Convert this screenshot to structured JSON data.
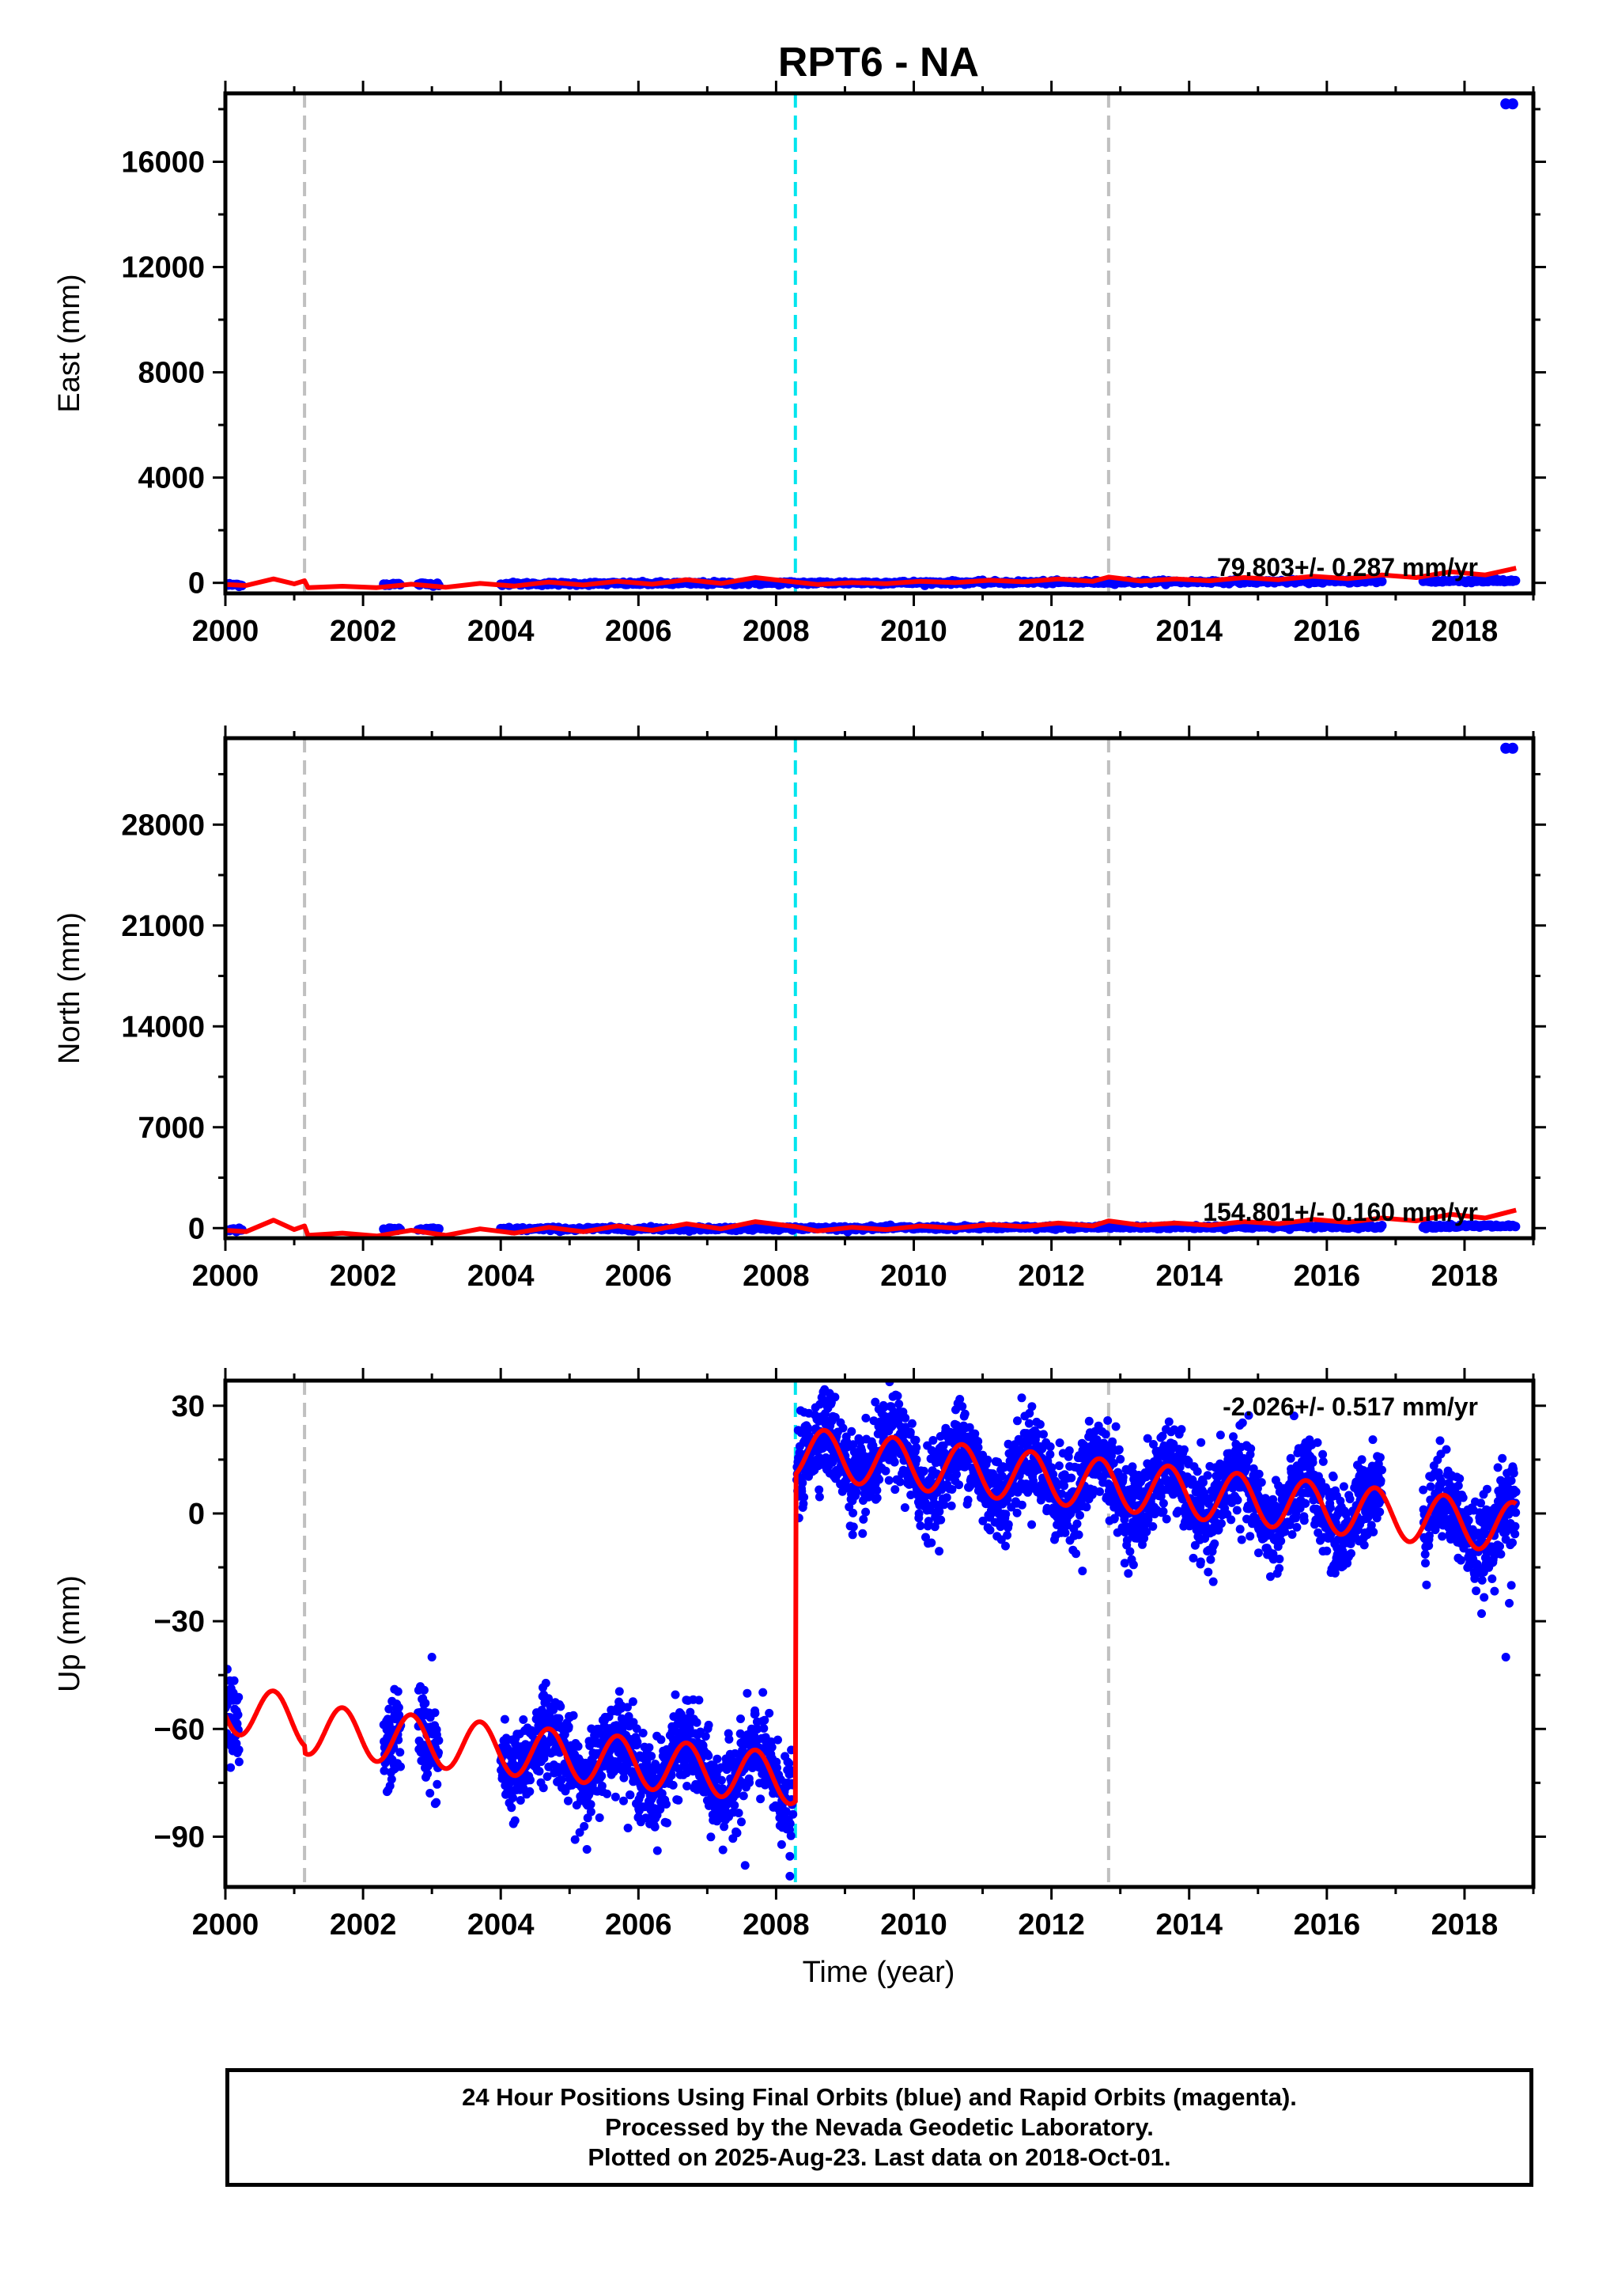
{
  "figure": {
    "title": "RPT6 - NA",
    "x_label": "Time (year)"
  },
  "colors": {
    "final_orbit_points": "#0000ff",
    "model_fit": "#ff0000",
    "antenna_change_lines": "#c0c0c0",
    "equipment_change_line": "#00e5ee"
  },
  "chart_data": [
    {
      "type": "scatter",
      "panel": "east",
      "ylabel": "East (mm)",
      "xlim": [
        2000.0,
        2019.0
      ],
      "ylim": [
        -400,
        18600
      ],
      "xticks": [
        2000,
        2002,
        2004,
        2006,
        2008,
        2010,
        2012,
        2014,
        2016,
        2018
      ],
      "yticks": [
        0,
        4000,
        8000,
        12000,
        16000
      ],
      "vlines_gray": [
        2001.15,
        2012.83
      ],
      "vline_cyan": 2008.28,
      "rate_label": "79.803+/- 0.287 mm/yr",
      "data_spans": [
        [
          2000.0,
          2000.25
        ],
        [
          2002.3,
          2002.55
        ],
        [
          2002.8,
          2003.1
        ],
        [
          2004.0,
          2016.8
        ],
        [
          2017.4,
          2018.75
        ]
      ],
      "outliers": [
        {
          "x": 2018.6,
          "y": 18200
        },
        {
          "x": 2018.7,
          "y": 18200
        }
      ],
      "fit_curve": [
        {
          "x": 2000.0,
          "y": -60
        },
        {
          "x": 2000.3,
          "y": -100
        },
        {
          "x": 2000.7,
          "y": 150
        },
        {
          "x": 2001.0,
          "y": -40
        },
        {
          "x": 2001.15,
          "y": 80
        },
        {
          "x": 2001.2,
          "y": -180
        },
        {
          "x": 2001.7,
          "y": -130
        },
        {
          "x": 2002.2,
          "y": -180
        },
        {
          "x": 2002.7,
          "y": -50
        },
        {
          "x": 2003.2,
          "y": -170
        },
        {
          "x": 2003.7,
          "y": -20
        },
        {
          "x": 2004.2,
          "y": -120
        },
        {
          "x": 2004.7,
          "y": 30
        },
        {
          "x": 2005.2,
          "y": -80
        },
        {
          "x": 2005.7,
          "y": 60
        },
        {
          "x": 2006.2,
          "y": -50
        },
        {
          "x": 2006.7,
          "y": 120
        },
        {
          "x": 2007.2,
          "y": -20
        },
        {
          "x": 2007.7,
          "y": 200
        },
        {
          "x": 2008.28,
          "y": 30
        },
        {
          "x": 2008.6,
          "y": -60
        },
        {
          "x": 2009.1,
          "y": 10
        },
        {
          "x": 2009.6,
          "y": -30
        },
        {
          "x": 2010.1,
          "y": 60
        },
        {
          "x": 2010.6,
          "y": 10
        },
        {
          "x": 2011.1,
          "y": 100
        },
        {
          "x": 2011.6,
          "y": 40
        },
        {
          "x": 2012.1,
          "y": 150
        },
        {
          "x": 2012.6,
          "y": 60
        },
        {
          "x": 2012.83,
          "y": 220
        },
        {
          "x": 2013.3,
          "y": 70
        },
        {
          "x": 2013.8,
          "y": 150
        },
        {
          "x": 2014.3,
          "y": 80
        },
        {
          "x": 2014.8,
          "y": 200
        },
        {
          "x": 2015.3,
          "y": 120
        },
        {
          "x": 2015.8,
          "y": 250
        },
        {
          "x": 2016.3,
          "y": 160
        },
        {
          "x": 2016.8,
          "y": 300
        },
        {
          "x": 2017.3,
          "y": 200
        },
        {
          "x": 2017.8,
          "y": 420
        },
        {
          "x": 2018.3,
          "y": 300
        },
        {
          "x": 2018.75,
          "y": 560
        }
      ]
    },
    {
      "type": "scatter",
      "panel": "north",
      "ylabel": "North (mm)",
      "xlim": [
        2000.0,
        2019.0
      ],
      "ylim": [
        -700,
        34000
      ],
      "xticks": [
        2000,
        2002,
        2004,
        2006,
        2008,
        2010,
        2012,
        2014,
        2016,
        2018
      ],
      "yticks": [
        0,
        7000,
        14000,
        21000,
        28000
      ],
      "vlines_gray": [
        2001.15,
        2012.83
      ],
      "vline_cyan": 2008.28,
      "rate_label": "154.801+/- 0.160 mm/yr",
      "data_spans": [
        [
          2000.0,
          2000.25
        ],
        [
          2002.3,
          2002.55
        ],
        [
          2002.8,
          2003.1
        ],
        [
          2004.0,
          2016.8
        ],
        [
          2017.4,
          2018.75
        ]
      ],
      "outliers": [
        {
          "x": 2018.6,
          "y": 33300
        },
        {
          "x": 2018.7,
          "y": 33300
        }
      ],
      "fit_curve": [
        {
          "x": 2000.0,
          "y": -150
        },
        {
          "x": 2000.3,
          "y": -250
        },
        {
          "x": 2000.7,
          "y": 550
        },
        {
          "x": 2001.0,
          "y": -100
        },
        {
          "x": 2001.15,
          "y": 150
        },
        {
          "x": 2001.2,
          "y": -500
        },
        {
          "x": 2001.7,
          "y": -350
        },
        {
          "x": 2002.2,
          "y": -550
        },
        {
          "x": 2002.7,
          "y": -150
        },
        {
          "x": 2003.2,
          "y": -500
        },
        {
          "x": 2003.7,
          "y": -50
        },
        {
          "x": 2004.2,
          "y": -350
        },
        {
          "x": 2004.7,
          "y": 50
        },
        {
          "x": 2005.2,
          "y": -250
        },
        {
          "x": 2005.7,
          "y": 150
        },
        {
          "x": 2006.2,
          "y": -150
        },
        {
          "x": 2006.7,
          "y": 300
        },
        {
          "x": 2007.2,
          "y": -50
        },
        {
          "x": 2007.7,
          "y": 450
        },
        {
          "x": 2008.28,
          "y": 100
        },
        {
          "x": 2008.6,
          "y": -200
        },
        {
          "x": 2009.1,
          "y": 50
        },
        {
          "x": 2009.6,
          "y": -100
        },
        {
          "x": 2010.1,
          "y": 150
        },
        {
          "x": 2010.6,
          "y": 0
        },
        {
          "x": 2011.1,
          "y": 250
        },
        {
          "x": 2011.6,
          "y": 100
        },
        {
          "x": 2012.1,
          "y": 350
        },
        {
          "x": 2012.6,
          "y": 150
        },
        {
          "x": 2012.83,
          "y": 500
        },
        {
          "x": 2013.3,
          "y": 200
        },
        {
          "x": 2013.8,
          "y": 350
        },
        {
          "x": 2014.3,
          "y": 200
        },
        {
          "x": 2014.8,
          "y": 450
        },
        {
          "x": 2015.3,
          "y": 300
        },
        {
          "x": 2015.8,
          "y": 600
        },
        {
          "x": 2016.3,
          "y": 400
        },
        {
          "x": 2016.8,
          "y": 700
        },
        {
          "x": 2017.3,
          "y": 500
        },
        {
          "x": 2017.8,
          "y": 950
        },
        {
          "x": 2018.3,
          "y": 700
        },
        {
          "x": 2018.75,
          "y": 1250
        }
      ]
    },
    {
      "type": "scatter",
      "panel": "up",
      "ylabel": "Up (mm)",
      "xlim": [
        2000.0,
        2019.0
      ],
      "ylim": [
        -104,
        37
      ],
      "xticks": [
        2000,
        2002,
        2004,
        2006,
        2008,
        2010,
        2012,
        2014,
        2016,
        2018
      ],
      "yticks": [
        -90,
        -60,
        -30,
        0,
        30
      ],
      "vlines_gray": [
        2001.15,
        2012.83
      ],
      "vline_cyan": 2008.28,
      "rate_label": "-2.026+/- 0.517 mm/yr",
      "offset_epoch": 2008.28,
      "data_spans": [
        [
          2000.0,
          2000.2
        ],
        [
          2002.3,
          2002.55
        ],
        [
          2002.8,
          2003.1
        ],
        [
          2004.0,
          2008.25
        ],
        [
          2008.3,
          2016.8
        ],
        [
          2017.4,
          2018.75
        ]
      ],
      "seasonal_amplitude": 7,
      "seasonal_peak_fraction": 0.7,
      "scatter_spread": 6,
      "trend_segments": [
        {
          "from": 2000.0,
          "to": 2001.15,
          "start": -54,
          "end": -58
        },
        {
          "from": 2001.15,
          "to": 2008.28,
          "start": -60,
          "end": -74
        },
        {
          "from": 2008.28,
          "to": 2012.83,
          "start": 17,
          "end": 8
        },
        {
          "from": 2012.83,
          "to": 2018.75,
          "start": 8,
          "end": -4
        }
      ],
      "outliers": [
        {
          "x": 2003.0,
          "y": -40
        },
        {
          "x": 2007.55,
          "y": -98
        },
        {
          "x": 2008.2,
          "y": -101
        },
        {
          "x": 2012.45,
          "y": -16
        },
        {
          "x": 2014.35,
          "y": -19
        },
        {
          "x": 2018.6,
          "y": -40
        },
        {
          "x": 2018.65,
          "y": -25
        },
        {
          "x": 2018.68,
          "y": -20
        }
      ]
    }
  ],
  "footer": {
    "line1": "24 Hour Positions Using Final Orbits (blue) and Rapid Orbits (magenta).",
    "line2": "Processed by the Nevada Geodetic Laboratory.",
    "line3": "Plotted on 2025-Aug-23. Last data on 2018-Oct-01."
  }
}
